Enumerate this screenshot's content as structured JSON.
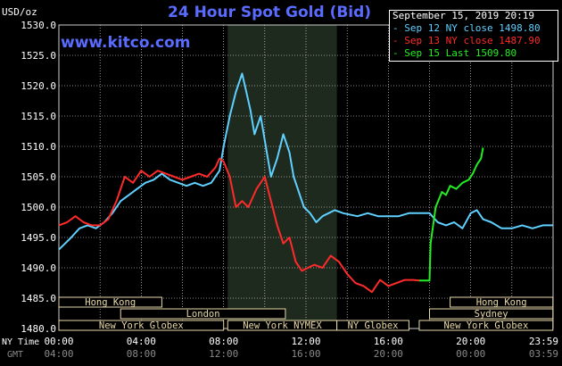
{
  "header": {
    "title": "24 Hour Spot Gold (Bid)",
    "website": "www.kitco.com",
    "units": "USD/oz",
    "date": "September 15, 2019 20:19"
  },
  "legend": [
    {
      "label": "Sep 12 NY close 1498.80",
      "color": "#5fd0ff"
    },
    {
      "label": "Sep 13 NY close 1487.90",
      "color": "#ff2a2a"
    },
    {
      "label": "Sep 15 Last 1509.80",
      "color": "#22ee22"
    }
  ],
  "time_axis": {
    "ny_label": "NY Time",
    "gmt_label": "GMT",
    "ny_ticks": [
      "00:00",
      "04:00",
      "08:00",
      "12:00",
      "16:00",
      "20:00",
      "23:59"
    ],
    "gmt_ticks": [
      "04:00",
      "08:00",
      "12:00",
      "16:00",
      "20:00",
      "00:00",
      "03:59"
    ]
  },
  "market_sessions": [
    {
      "label": "Hong Kong",
      "row": 1,
      "start_h": 0,
      "end_h": 5.0
    },
    {
      "label": "London",
      "row": 2,
      "start_h": 3.0,
      "end_h": 11.0
    },
    {
      "label": "New York Globex",
      "row": 3,
      "start_h": 0,
      "end_h": 8.0
    },
    {
      "label": "New York NYMEX",
      "row": 3,
      "start_h": 8.2,
      "end_h": 13.5
    },
    {
      "label": "NY Globex",
      "row": 3,
      "start_h": 13.5,
      "end_h": 17.0
    },
    {
      "label": "Hong Kong",
      "row": 1,
      "start_h": 19.0,
      "end_h": 23.99
    },
    {
      "label": "Sydney",
      "row": 2,
      "start_h": 18.0,
      "end_h": 23.99
    },
    {
      "label": "New York Globex",
      "row": 3,
      "start_h": 17.5,
      "end_h": 23.99
    }
  ],
  "colors": {
    "background": "#000000",
    "grid": "#ffffff",
    "session_box": "#e8d9a8",
    "shade": "#1e2a1e",
    "sep12": "#5fd0ff",
    "sep13": "#ff2a2a",
    "sep15": "#22ee22",
    "title": "#5a6cff"
  },
  "chart_data": {
    "type": "line",
    "title": "24 Hour Spot Gold (Bid)",
    "ylabel": "USD/oz",
    "xlabel": "NY Time",
    "ylim": [
      1480,
      1530
    ],
    "yticks": [
      1480,
      1485,
      1490,
      1495,
      1500,
      1505,
      1510,
      1515,
      1520,
      1525,
      1530
    ],
    "ytick_labels": [
      "1480.0",
      "1485.0",
      "1490.0",
      "1495.0",
      "1500.0",
      "1505.0",
      "1510.0",
      "1515.0",
      "1520.0",
      "1525.0",
      "1530.0"
    ],
    "xlim_hours": [
      0,
      24
    ],
    "grid": true,
    "shaded_session_hours": [
      8.2,
      13.5
    ],
    "series": [
      {
        "name": "Sep 12 NY close 1498.80",
        "color": "#5fd0ff",
        "x": [
          0,
          0.3,
          0.6,
          1.0,
          1.4,
          1.8,
          2.2,
          2.6,
          3.0,
          3.4,
          3.8,
          4.2,
          4.6,
          5.0,
          5.4,
          5.8,
          6.2,
          6.6,
          7.0,
          7.4,
          7.8,
          8.0,
          8.3,
          8.6,
          8.9,
          9.1,
          9.3,
          9.5,
          9.8,
          10.1,
          10.3,
          10.6,
          10.9,
          11.2,
          11.4,
          11.6,
          11.9,
          12.2,
          12.5,
          12.8,
          13.1,
          13.4,
          13.8,
          14.5,
          15.0,
          15.5,
          16.0,
          16.5,
          17.0,
          17.5,
          18.0,
          18.4,
          18.8,
          19.2,
          19.6,
          20.0,
          20.3,
          20.6,
          21.0,
          21.5,
          22.0,
          22.5,
          23.0,
          23.5,
          23.99
        ],
        "values": [
          1493,
          1494,
          1495,
          1496.5,
          1497,
          1496.5,
          1497.5,
          1499,
          1501,
          1502,
          1503,
          1504,
          1504.5,
          1505.5,
          1504.5,
          1504,
          1503.5,
          1504,
          1503.5,
          1504,
          1506,
          1510,
          1515,
          1519,
          1522,
          1519,
          1516,
          1512,
          1515,
          1509,
          1505,
          1508,
          1512,
          1509,
          1505,
          1503,
          1500,
          1499,
          1497.5,
          1498.5,
          1499,
          1499.5,
          1499,
          1498.5,
          1499,
          1498.5,
          1498.5,
          1498.5,
          1499,
          1499,
          1499,
          1497.5,
          1497,
          1497.5,
          1496.5,
          1499,
          1499.5,
          1498,
          1497.5,
          1496.5,
          1496.5,
          1497,
          1496.5,
          1497,
          1497
        ]
      },
      {
        "name": "Sep 13 NY close 1487.90",
        "color": "#ff2a2a",
        "x": [
          0,
          0.4,
          0.8,
          1.2,
          1.6,
          2.0,
          2.4,
          2.8,
          3.2,
          3.6,
          4.0,
          4.4,
          4.8,
          5.2,
          5.6,
          6.0,
          6.4,
          6.8,
          7.2,
          7.6,
          7.8,
          8.0,
          8.3,
          8.6,
          8.9,
          9.2,
          9.6,
          10.0,
          10.3,
          10.6,
          10.9,
          11.2,
          11.5,
          11.8,
          12.1,
          12.4,
          12.8,
          13.2,
          13.6,
          14.0,
          14.4,
          14.8,
          15.2,
          15.6,
          16.0,
          16.4,
          16.8,
          17.2,
          17.5
        ],
        "values": [
          1497,
          1497.5,
          1498.5,
          1497.5,
          1497,
          1497,
          1498,
          1501,
          1505,
          1504,
          1506,
          1505,
          1506,
          1505.5,
          1505,
          1504.5,
          1505,
          1505.5,
          1505,
          1506.5,
          1508,
          1507.5,
          1505,
          1500,
          1501,
          1500,
          1503,
          1505,
          1501,
          1497,
          1494,
          1495,
          1491,
          1489.5,
          1490,
          1490.5,
          1490,
          1492,
          1491,
          1489,
          1487.5,
          1487,
          1486,
          1488,
          1487,
          1487.5,
          1488,
          1488,
          1487.9
        ]
      },
      {
        "name": "Sep 15 Last 1509.80",
        "color": "#22ee22",
        "x": [
          17.5,
          18.0,
          18.05,
          18.3,
          18.6,
          18.8,
          19.0,
          19.3,
          19.6,
          19.9,
          20.1,
          20.3,
          20.5,
          20.6
        ],
        "values": [
          1487.9,
          1487.9,
          1494,
          1500,
          1502.5,
          1502,
          1503.5,
          1503,
          1504,
          1504.5,
          1505.5,
          1507,
          1508,
          1509.8
        ]
      }
    ]
  }
}
